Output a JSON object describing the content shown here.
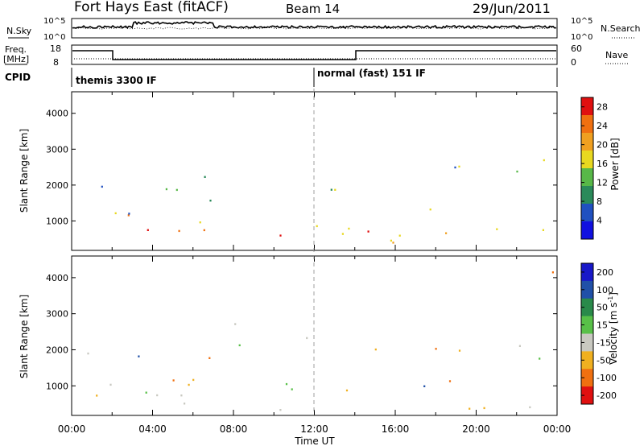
{
  "header": {
    "title": "Fort Hays East (fitACF)",
    "beam": "Beam 14",
    "date": "29/Jun/2011"
  },
  "status_panels": {
    "nsky": {
      "label": "N.Sky",
      "right_label": "N.Search",
      "left_ticks": [
        "10^5",
        "10^0"
      ],
      "right_ticks": [
        "10^5",
        "10^0"
      ]
    },
    "freq": {
      "label_line1": "Freq.",
      "label_line2": "[MHz]",
      "right_label": "Nave",
      "left_ticks": [
        "18",
        "8"
      ],
      "right_ticks": [
        "60",
        "0"
      ]
    },
    "cpid": {
      "label": "CPID",
      "programs": [
        {
          "name": "themis 3300 IF",
          "start_hour": 0
        },
        {
          "name": "normal (fast) 151 IF",
          "start_hour": 12
        }
      ]
    }
  },
  "chart_data": [
    {
      "type": "heatmap",
      "name": "Power",
      "ylabel": "Slant Range [km]",
      "xlabel": "Time UT",
      "x_range_hours": [
        0,
        24
      ],
      "ylim": [
        180,
        4600
      ],
      "y_ticks": [
        1000,
        2000,
        3000,
        4000
      ],
      "x_tick_labels": [
        "00:00",
        "04:00",
        "08:00",
        "12:00",
        "16:00",
        "20:00",
        "00:00"
      ],
      "colorbar": {
        "label": "Power [dB]",
        "ticks": [
          4,
          8,
          12,
          16,
          20,
          24,
          28
        ],
        "range": [
          0,
          30
        ],
        "colors": [
          "#1010e0",
          "#2050c0",
          "#2a8a5a",
          "#58b848",
          "#e8d820",
          "#f0a020",
          "#f07010",
          "#e01010"
        ]
      }
    },
    {
      "type": "heatmap",
      "name": "Velocity",
      "ylabel": "Slant Range [km]",
      "xlabel": "Time UT",
      "x_range_hours": [
        0,
        24
      ],
      "ylim": [
        180,
        4600
      ],
      "y_ticks": [
        1000,
        2000,
        3000,
        4000
      ],
      "x_tick_labels": [
        "00:00",
        "04:00",
        "08:00",
        "12:00",
        "16:00",
        "20:00",
        "00:00"
      ],
      "colorbar": {
        "label": "Velocity [m s",
        "label_sup": "-1",
        "label_end": "]",
        "ticks": [
          200,
          100,
          50,
          15,
          -15,
          -50,
          -100,
          -200
        ],
        "colors": [
          "#1818c8",
          "#2050a8",
          "#2a8a4a",
          "#58c048",
          "#c8c8c0",
          "#f0b020",
          "#f07010",
          "#e01010"
        ]
      }
    }
  ],
  "annotations": {
    "dashed_marker_hour": 12
  }
}
